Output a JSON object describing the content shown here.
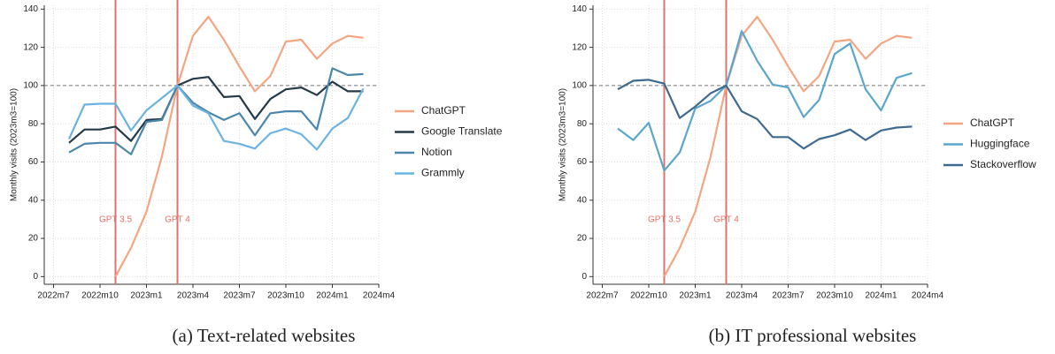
{
  "chart_data": [
    {
      "type": "line",
      "caption": "(a) Text-related websites",
      "y_label": "Monthly visits (2023m3=100)",
      "x": [
        2022.5833,
        2022.6667,
        2022.75,
        2022.8333,
        2022.9167,
        2023.0,
        2023.0833,
        2023.1667,
        2023.25,
        2023.3333,
        2023.4167,
        2023.5,
        2023.5833,
        2023.6667,
        2023.75,
        2023.8333,
        2023.9167,
        2024.0,
        2024.0833,
        2024.1667
      ],
      "xlim": [
        2022.45,
        2024.25
      ],
      "xticks": [
        {
          "value": 2022.5,
          "label": "2022m7"
        },
        {
          "value": 2022.75,
          "label": "2022m10"
        },
        {
          "value": 2023.0,
          "label": "2023m1"
        },
        {
          "value": 2023.25,
          "label": "2023m4"
        },
        {
          "value": 2023.5,
          "label": "2023m7"
        },
        {
          "value": 2023.75,
          "label": "2023m10"
        },
        {
          "value": 2024.0,
          "label": "2024m1"
        },
        {
          "value": 2024.25,
          "label": "2024m4"
        }
      ],
      "ylim": [
        -4,
        142
      ],
      "yticks": [
        0,
        20,
        40,
        60,
        80,
        100,
        120,
        140
      ],
      "grid": true,
      "hline": 100,
      "vlines": [
        {
          "x": 2022.8333,
          "label": "GPT 3.5"
        },
        {
          "x": 2023.1667,
          "label": "GPT 4"
        }
      ],
      "series": [
        {
          "name": "ChatGPT",
          "color": "#f4a582",
          "values": [
            null,
            null,
            null,
            0,
            15,
            34,
            63,
            100,
            126,
            136,
            124,
            110,
            97,
            105,
            123,
            124,
            114,
            122,
            126,
            125
          ]
        },
        {
          "name": "Google Translate",
          "color": "#243a48",
          "values": [
            70,
            77,
            77,
            78.5,
            71,
            82,
            82.5,
            100,
            103.5,
            104.5,
            94,
            94.5,
            82.5,
            93,
            98,
            99,
            95,
            102,
            97,
            97
          ]
        },
        {
          "name": "Notion",
          "color": "#4a87ab",
          "values": [
            65,
            69.5,
            70,
            70,
            64,
            81,
            82,
            100,
            91,
            86,
            82,
            85.5,
            74,
            85.5,
            86.5,
            86.5,
            77,
            109,
            105.5,
            106
          ]
        },
        {
          "name": "Grammly",
          "color": "#6bb3e0",
          "values": [
            72,
            90,
            90.5,
            90.5,
            76.5,
            87,
            93.5,
            100,
            89.5,
            85.5,
            71,
            69.5,
            67,
            75,
            77.5,
            74.5,
            66.5,
            77.5,
            83,
            98.5
          ]
        }
      ]
    },
    {
      "type": "line",
      "caption": "(b) IT professional websites",
      "y_label": "Monthly visits (2023m3=100)",
      "x": [
        2022.5833,
        2022.6667,
        2022.75,
        2022.8333,
        2022.9167,
        2023.0,
        2023.0833,
        2023.1667,
        2023.25,
        2023.3333,
        2023.4167,
        2023.5,
        2023.5833,
        2023.6667,
        2023.75,
        2023.8333,
        2023.9167,
        2024.0,
        2024.0833,
        2024.1667
      ],
      "xlim": [
        2022.45,
        2024.25
      ],
      "xticks": [
        {
          "value": 2022.5,
          "label": "2022m7"
        },
        {
          "value": 2022.75,
          "label": "2022m10"
        },
        {
          "value": 2023.0,
          "label": "2023m1"
        },
        {
          "value": 2023.25,
          "label": "2023m4"
        },
        {
          "value": 2023.5,
          "label": "2023m7"
        },
        {
          "value": 2023.75,
          "label": "2023m10"
        },
        {
          "value": 2024.0,
          "label": "2024m1"
        },
        {
          "value": 2024.25,
          "label": "2024m4"
        }
      ],
      "ylim": [
        -4,
        142
      ],
      "yticks": [
        0,
        20,
        40,
        60,
        80,
        100,
        120,
        140
      ],
      "grid": true,
      "hline": 100,
      "vlines": [
        {
          "x": 2022.8333,
          "label": "GPT 3.5"
        },
        {
          "x": 2023.1667,
          "label": "GPT 4"
        }
      ],
      "series": [
        {
          "name": "ChatGPT",
          "color": "#f4a582",
          "values": [
            null,
            null,
            null,
            0,
            15,
            34,
            63,
            100,
            126,
            136,
            124,
            110,
            97,
            105,
            123,
            124,
            114,
            122,
            126,
            125
          ]
        },
        {
          "name": "Huggingface",
          "color": "#5aa6cc",
          "values": [
            77.5,
            71.5,
            80.5,
            55.5,
            65,
            88,
            92,
            100,
            128.5,
            113,
            100.5,
            99,
            83.5,
            92.5,
            116.5,
            122,
            98,
            87,
            104,
            106.5
          ]
        },
        {
          "name": "Stackoverflow",
          "color": "#3e6a8f",
          "values": [
            98,
            102.5,
            103,
            101,
            83,
            89,
            96,
            100,
            86.5,
            82.5,
            73,
            73,
            67,
            72,
            74,
            77,
            71.5,
            76.5,
            78,
            78.5
          ]
        }
      ]
    }
  ]
}
